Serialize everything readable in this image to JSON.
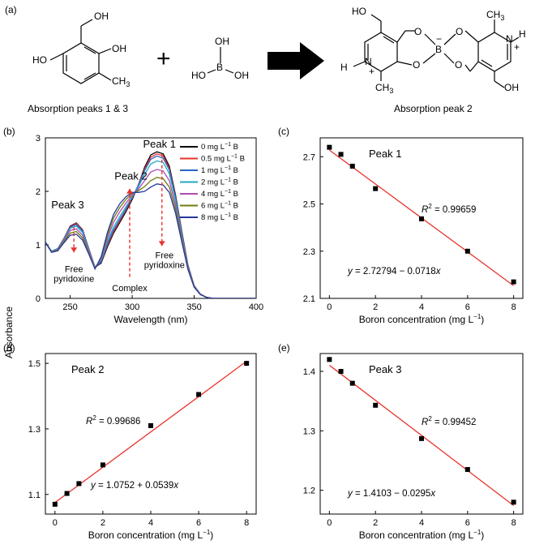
{
  "scheme": {
    "panel_label": "(a)",
    "left_caption": "Absorption peaks 1 & 3",
    "right_caption": "Absorption peak 2",
    "pyridoxine_labels": {
      "ho_left": "HO",
      "oh_top": "OH",
      "oh_right": "OH",
      "ch3": "CH",
      "ch3_sub": "3"
    },
    "plus_sign": "+",
    "boric_acid_labels": {
      "oh_top": "OH",
      "b": "B",
      "ho_left": "HO",
      "oh_right": "OH"
    },
    "complex_labels": {
      "ho": "HO",
      "oh": "OH",
      "ch3": "CH",
      "ch3_sub": "3",
      "o": "O",
      "b": "B",
      "minus": "−",
      "n": "N",
      "h": "H",
      "plus": "+"
    }
  },
  "shared": {
    "absorbance_label": "Absorbance",
    "boron_axis_label": "Boron concentration (mg L",
    "boron_axis_exp": "−1",
    "boron_axis_close": ")"
  },
  "chart_data": [
    {
      "id": "b",
      "panel_label": "(b)",
      "type": "line",
      "xlabel": "Wavelength (nm)",
      "xlim": [
        230,
        400
      ],
      "ylim": [
        0,
        3
      ],
      "xticks": [
        250,
        300,
        350,
        400
      ],
      "yticks": [
        0,
        1,
        2,
        3
      ],
      "legend_position": "right",
      "legend": [
        {
          "name": "0 mg L",
          "exp": "−1",
          "unit": " B",
          "color": "#000000"
        },
        {
          "name": "0.5 mg L",
          "exp": "−1",
          "unit": " B",
          "color": "#e8332a"
        },
        {
          "name": "1 mg L",
          "exp": "−1",
          "unit": " B",
          "color": "#2a62c8"
        },
        {
          "name": "2 mg L",
          "exp": "−1",
          "unit": " B",
          "color": "#22a8c4"
        },
        {
          "name": "4 mg L",
          "exp": "−1",
          "unit": " B",
          "color": "#b04ab5"
        },
        {
          "name": "6 mg L",
          "exp": "−1",
          "unit": " B",
          "color": "#6f7d12"
        },
        {
          "name": "8 mg L",
          "exp": "−1",
          "unit": " B",
          "color": "#243a9a"
        }
      ],
      "x": [
        230,
        235,
        240,
        245,
        250,
        255,
        260,
        265,
        270,
        275,
        280,
        285,
        290,
        295,
        300,
        305,
        310,
        315,
        320,
        325,
        330,
        335,
        340,
        345,
        350,
        355,
        360,
        365,
        370,
        380,
        390,
        400
      ],
      "series": [
        {
          "color": "#000000",
          "values": [
            1.05,
            0.88,
            0.93,
            1.12,
            1.35,
            1.41,
            1.28,
            0.93,
            0.58,
            0.66,
            0.96,
            1.22,
            1.42,
            1.62,
            1.85,
            2.12,
            2.45,
            2.68,
            2.74,
            2.7,
            2.47,
            1.93,
            1.26,
            0.62,
            0.24,
            0.08,
            0.02,
            0.0,
            0.0,
            0.0,
            0.0,
            0.0
          ]
        },
        {
          "color": "#e8332a",
          "values": [
            1.05,
            0.88,
            0.93,
            1.12,
            1.34,
            1.4,
            1.27,
            0.93,
            0.58,
            0.68,
            0.99,
            1.25,
            1.45,
            1.65,
            1.88,
            2.12,
            2.42,
            2.64,
            2.7,
            2.66,
            2.43,
            1.9,
            1.24,
            0.61,
            0.24,
            0.08,
            0.02,
            0.0,
            0.0,
            0.0,
            0.0,
            0.0
          ]
        },
        {
          "color": "#2a62c8",
          "values": [
            1.05,
            0.88,
            0.93,
            1.11,
            1.33,
            1.38,
            1.26,
            0.92,
            0.58,
            0.69,
            1.02,
            1.28,
            1.48,
            1.67,
            1.89,
            2.11,
            2.39,
            2.6,
            2.66,
            2.62,
            2.4,
            1.88,
            1.22,
            0.6,
            0.23,
            0.08,
            0.02,
            0.0,
            0.0,
            0.0,
            0.0,
            0.0
          ]
        },
        {
          "color": "#22a8c4",
          "values": [
            1.05,
            0.88,
            0.92,
            1.1,
            1.31,
            1.35,
            1.23,
            0.91,
            0.58,
            0.71,
            1.06,
            1.33,
            1.53,
            1.71,
            1.9,
            2.08,
            2.32,
            2.51,
            2.57,
            2.54,
            2.33,
            1.83,
            1.19,
            0.59,
            0.23,
            0.08,
            0.02,
            0.0,
            0.0,
            0.0,
            0.0,
            0.0
          ]
        },
        {
          "color": "#b04ab5",
          "values": [
            1.05,
            0.87,
            0.91,
            1.08,
            1.27,
            1.3,
            1.18,
            0.88,
            0.57,
            0.74,
            1.12,
            1.42,
            1.62,
            1.78,
            1.93,
            2.04,
            2.2,
            2.36,
            2.41,
            2.38,
            2.2,
            1.74,
            1.14,
            0.57,
            0.22,
            0.08,
            0.02,
            0.0,
            0.0,
            0.0,
            0.0,
            0.0
          ]
        },
        {
          "color": "#6f7d12",
          "values": [
            1.05,
            0.87,
            0.9,
            1.06,
            1.22,
            1.25,
            1.13,
            0.85,
            0.56,
            0.76,
            1.18,
            1.5,
            1.7,
            1.85,
            1.96,
            2.01,
            2.09,
            2.2,
            2.26,
            2.24,
            2.08,
            1.66,
            1.1,
            0.55,
            0.21,
            0.07,
            0.02,
            0.0,
            0.0,
            0.0,
            0.0,
            0.0
          ]
        },
        {
          "color": "#243a9a",
          "values": [
            1.05,
            0.86,
            0.89,
            1.04,
            1.18,
            1.2,
            1.09,
            0.83,
            0.55,
            0.78,
            1.23,
            1.57,
            1.77,
            1.9,
            1.98,
            1.98,
            2.0,
            2.08,
            2.14,
            2.12,
            1.98,
            1.59,
            1.06,
            0.54,
            0.21,
            0.07,
            0.02,
            0.0,
            0.0,
            0.0,
            0.0,
            0.0
          ]
        }
      ],
      "annotations": [
        {
          "text": "Peak 1",
          "at": [
            322,
            2.82
          ],
          "anchor": "middle"
        },
        {
          "text": "Peak 2",
          "at": [
            299,
            2.22
          ],
          "anchor": "middle"
        },
        {
          "text": "Peak 3",
          "at": [
            248,
            1.68
          ],
          "anchor": "middle"
        },
        {
          "text": "Free",
          "at": [
            253,
            0.49
          ],
          "anchor": "middle"
        },
        {
          "text": "pyridoxine",
          "at": [
            253,
            0.31
          ],
          "anchor": "middle"
        },
        {
          "text": "Complex",
          "at": [
            298,
            0.14
          ],
          "anchor": "middle"
        },
        {
          "text": "Free",
          "at": [
            326,
            0.75
          ],
          "anchor": "middle"
        },
        {
          "text": "pyridoxine",
          "at": [
            326,
            0.57
          ],
          "anchor": "middle"
        }
      ],
      "arrows": [
        {
          "dir": "down",
          "x": 253,
          "y_from": 1.33,
          "y_to": 0.86
        },
        {
          "dir": "up",
          "x": 298,
          "y_from": 0.4,
          "y_to": 2.05
        },
        {
          "dir": "down",
          "x": 324,
          "y_from": 2.7,
          "y_to": 0.98
        }
      ]
    },
    {
      "id": "c",
      "panel_label": "(c)",
      "type": "scatter",
      "annotation_title": "Peak 1",
      "x": [
        0,
        0.5,
        1,
        2,
        4,
        6,
        8
      ],
      "y": [
        2.74,
        2.71,
        2.66,
        2.565,
        2.437,
        2.3,
        2.17
      ],
      "fit": {
        "intercept": 2.72794,
        "slope": -0.0718
      },
      "r2_label": "R",
      "r2_exp": "2",
      "r2_value": " = 0.99659",
      "equation_y": "y",
      "equation_rest": " = 2.72794 − 0.0718",
      "equation_x": "x",
      "xlim": [
        -0.4,
        8.4
      ],
      "ylim": [
        2.1,
        2.78
      ],
      "xticks": [
        0,
        2,
        4,
        6,
        8
      ],
      "yticks": [
        2.1,
        2.3,
        2.5,
        2.7
      ]
    },
    {
      "id": "d",
      "panel_label": "(d)",
      "type": "scatter",
      "annotation_title": "Peak 2",
      "x": [
        0,
        0.5,
        1,
        2,
        4,
        6,
        8
      ],
      "y": [
        1.07,
        1.103,
        1.133,
        1.19,
        1.31,
        1.405,
        1.5
      ],
      "fit": {
        "intercept": 1.0752,
        "slope": 0.0539
      },
      "r2_label": "R",
      "r2_exp": "2",
      "r2_value": " = 0.99686",
      "equation_y": "y",
      "equation_rest": " = 1.0752 + 0.0539",
      "equation_x": "x",
      "xlim": [
        -0.4,
        8.4
      ],
      "ylim": [
        1.04,
        1.53
      ],
      "xticks": [
        0,
        2,
        4,
        6,
        8
      ],
      "yticks": [
        1.1,
        1.3,
        1.5
      ]
    },
    {
      "id": "e",
      "panel_label": "(e)",
      "type": "scatter",
      "annotation_title": "Peak 3",
      "x": [
        0,
        0.5,
        1,
        2,
        4,
        6,
        8
      ],
      "y": [
        1.42,
        1.4,
        1.38,
        1.343,
        1.287,
        1.235,
        1.18
      ],
      "fit": {
        "intercept": 1.4103,
        "slope": -0.0295
      },
      "r2_label": "R",
      "r2_exp": "2",
      "r2_value": " = 0.99452",
      "equation_y": "y",
      "equation_rest": " = 1.4103 − 0.0295",
      "equation_x": "x",
      "xlim": [
        -0.4,
        8.4
      ],
      "ylim": [
        1.16,
        1.43
      ],
      "xticks": [
        0,
        2,
        4,
        6,
        8
      ],
      "yticks": [
        1.2,
        1.3,
        1.4
      ]
    }
  ]
}
